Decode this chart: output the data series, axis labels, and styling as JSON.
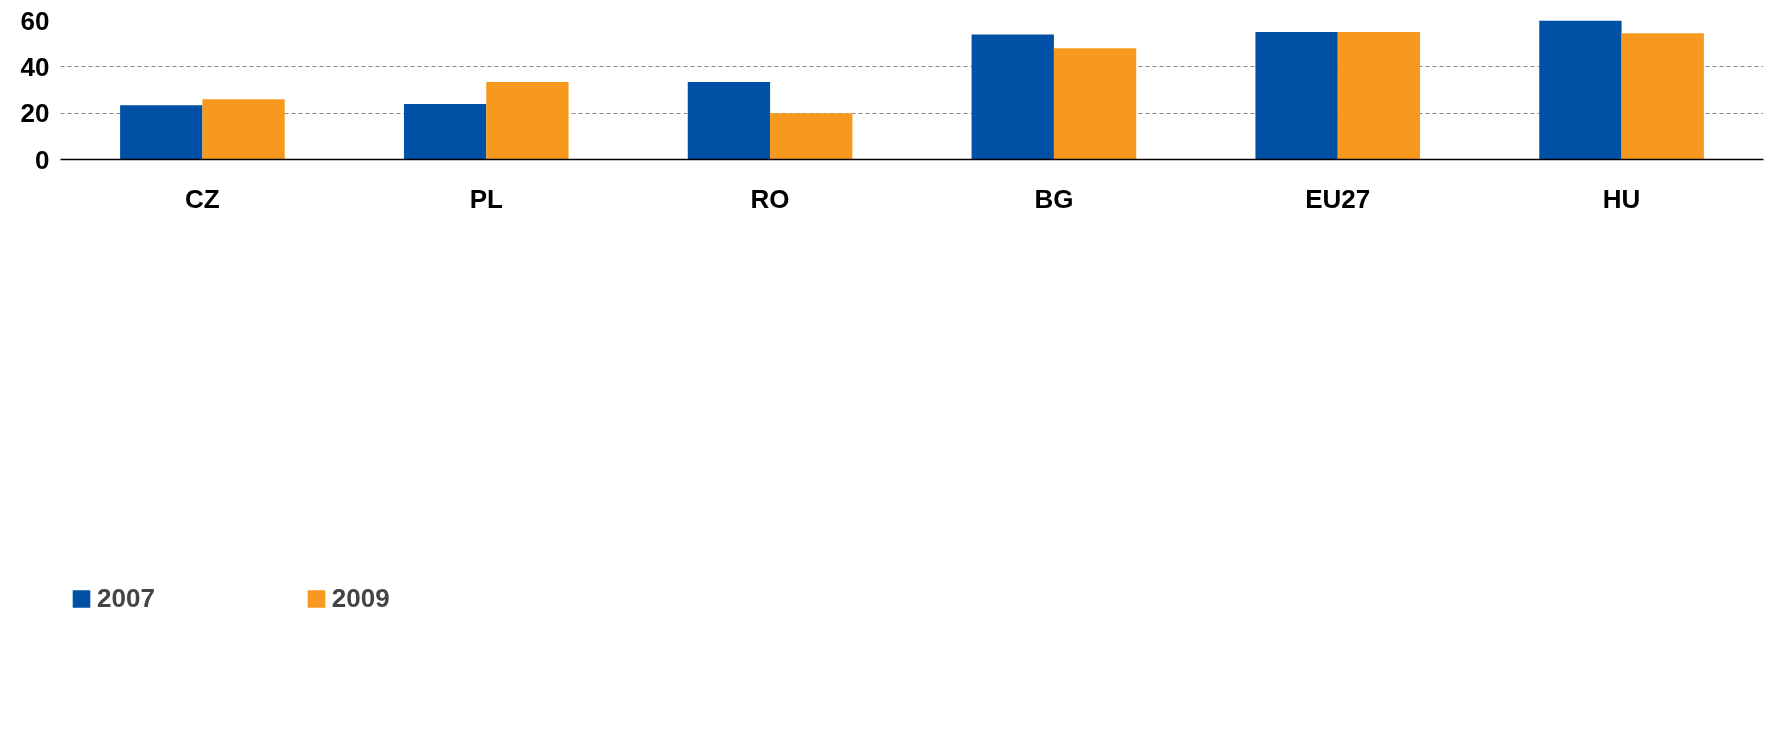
{
  "chart_data": {
    "type": "bar",
    "categories": [
      "CZ",
      "PL",
      "RO",
      "BG",
      "EU27",
      "HU"
    ],
    "series": [
      {
        "name": "2007",
        "color": "#0050a5",
        "values": [
          23.4,
          24.0,
          33.4,
          54.0,
          55.0,
          60.0
        ]
      },
      {
        "name": "2009",
        "color": "#f7991f",
        "values": [
          26.0,
          33.4,
          20.0,
          48.0,
          55.0,
          54.5
        ]
      }
    ],
    "ylim": [
      0,
      60
    ],
    "yticks": [
      0,
      20,
      40,
      60
    ],
    "grid": "y",
    "legend": "bottom"
  }
}
